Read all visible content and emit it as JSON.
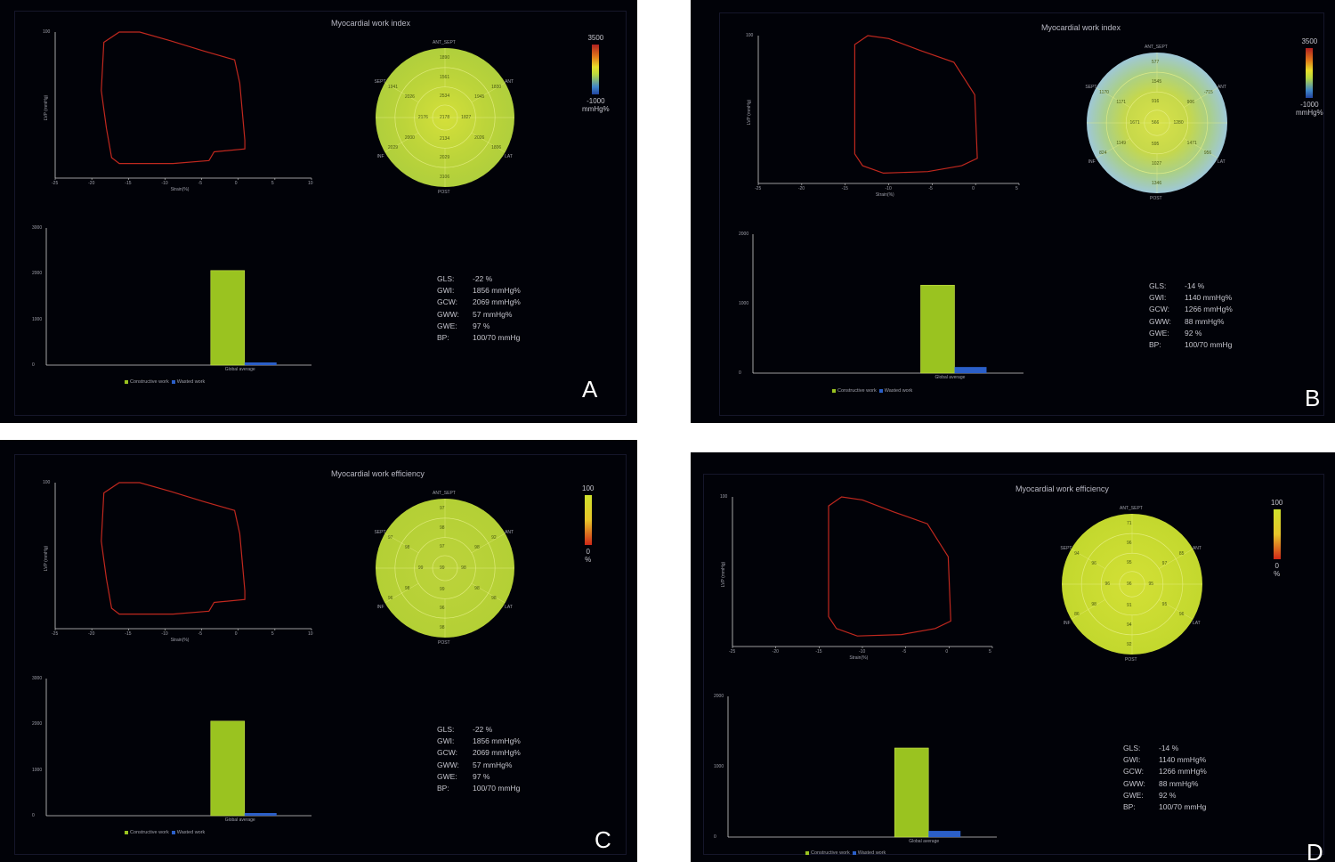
{
  "panels": [
    {
      "letter": "A",
      "title": "Myocardial work index",
      "scale_top": "3500",
      "scale_bottom": "-1000",
      "scale_unit": "mmHg%",
      "bullseye_scheme": "work",
      "wall_labels": {
        "ant_sept": "ANT_SEPT",
        "ant": "ANT",
        "lat": "LAT",
        "post": "POST",
        "inf": "INF",
        "sept": "SEPT"
      },
      "segments": [
        "1890",
        "1830",
        "1806",
        "3106",
        "2029",
        "1941",
        "1561",
        "1945",
        "2026",
        "2029",
        "2000",
        "2026",
        "2534",
        "1827",
        "2134",
        "2176",
        "2178"
      ],
      "loop_ylabel": "LVP (mmHg)",
      "loop_xlabel": "Strain(%)",
      "loop_yticks": [
        "100"
      ],
      "loop_xticks": [
        "-25",
        "-20",
        "-15",
        "-10",
        "-5",
        "0",
        "5",
        "10"
      ],
      "bar_yticks": [
        "3000",
        "2000",
        "1000",
        "0"
      ],
      "bar_xlabel": "Global average",
      "legend": [
        "Constructive work",
        "Wasted work"
      ],
      "bars": {
        "constructive": 2069,
        "wasted": 57,
        "ymax": 3000
      },
      "stats": [
        [
          "GLS:",
          "-22 %"
        ],
        [
          "GWI:",
          "1856 mmHg%"
        ],
        [
          "GCW:",
          "2069 mmHg%"
        ],
        [
          "GWW:",
          "57 mmHg%"
        ],
        [
          "GWE:",
          "97 %"
        ],
        [
          "BP:",
          "100/70 mmHg"
        ]
      ]
    },
    {
      "letter": "B",
      "title": "Myocardial work index",
      "scale_top": "3500",
      "scale_bottom": "-1000",
      "scale_unit": "mmHg%",
      "bullseye_scheme": "work_b",
      "wall_labels": {
        "ant_sept": "ANT_SEPT",
        "ant": "ANT",
        "lat": "LAT",
        "post": "POST",
        "inf": "INF",
        "sept": "SEPT"
      },
      "segments": [
        "577",
        "-715",
        "956",
        "1346",
        "824",
        "1170",
        "1545",
        "906",
        "1471",
        "1027",
        "1149",
        "1171",
        "916",
        "1280",
        "595",
        "1671",
        "566"
      ],
      "loop_ylabel": "LVP (mmHg)",
      "loop_xlabel": "Strain(%)",
      "loop_yticks": [
        "100"
      ],
      "loop_xticks": [
        "-25",
        "-20",
        "-15",
        "-10",
        "-5",
        "0",
        "5"
      ],
      "bar_yticks": [
        "2000",
        "1000",
        "0"
      ],
      "bar_xlabel": "Global average",
      "legend": [
        "Constructive work",
        "Wasted work"
      ],
      "bars": {
        "constructive": 1266,
        "wasted": 88,
        "ymax": 2000
      },
      "stats": [
        [
          "GLS:",
          "-14 %"
        ],
        [
          "GWI:",
          "1140 mmHg%"
        ],
        [
          "GCW:",
          "1266 mmHg%"
        ],
        [
          "GWW:",
          "88 mmHg%"
        ],
        [
          "GWE:",
          "92 %"
        ],
        [
          "BP:",
          "100/70 mmHg"
        ]
      ]
    },
    {
      "letter": "C",
      "title": "Myocardial work efficiency",
      "scale_top": "100",
      "scale_bottom": "0",
      "scale_unit": "%",
      "bullseye_scheme": "eff",
      "wall_labels": {
        "ant_sept": "ANT_SEPT",
        "ant": "ANT",
        "lat": "LAT",
        "post": "POST",
        "inf": "INF",
        "sept": "SEPT"
      },
      "segments": [
        "97",
        "92",
        "98",
        "98",
        "96",
        "97",
        "98",
        "98",
        "98",
        "96",
        "98",
        "98",
        "97",
        "98",
        "99",
        "99",
        "99"
      ],
      "loop_ylabel": "LVP (mmHg)",
      "loop_xlabel": "Strain(%)",
      "loop_yticks": [
        "100"
      ],
      "loop_xticks": [
        "-25",
        "-20",
        "-15",
        "-10",
        "-5",
        "0",
        "5",
        "10"
      ],
      "bar_yticks": [
        "3000",
        "2000",
        "1000",
        "0"
      ],
      "bar_xlabel": "Global average",
      "legend": [
        "Constructive work",
        "Wasted work"
      ],
      "bars": {
        "constructive": 2069,
        "wasted": 57,
        "ymax": 3000
      },
      "stats": [
        [
          "GLS:",
          "-22 %"
        ],
        [
          "GWI:",
          "1856 mmHg%"
        ],
        [
          "GCW:",
          "2069 mmHg%"
        ],
        [
          "GWW:",
          "57 mmHg%"
        ],
        [
          "GWE:",
          "97 %"
        ],
        [
          "BP:",
          "100/70 mmHg"
        ]
      ]
    },
    {
      "letter": "D",
      "title": "Myocardial work efficiency",
      "scale_top": "100",
      "scale_bottom": "0",
      "scale_unit": "%",
      "bullseye_scheme": "eff_d",
      "wall_labels": {
        "ant_sept": "ANT_SEPT",
        "ant": "ANT",
        "lat": "LAT",
        "post": "POST",
        "inf": "INF",
        "sept": "SEPT"
      },
      "segments": [
        "71",
        "85",
        "96",
        "92",
        "86",
        "94",
        "96",
        "97",
        "95",
        "94",
        "98",
        "96",
        "95",
        "95",
        "91",
        "96",
        "96"
      ],
      "loop_ylabel": "LVP (mmHg)",
      "loop_xlabel": "Strain(%)",
      "loop_yticks": [
        "100"
      ],
      "loop_xticks": [
        "-25",
        "-20",
        "-15",
        "-10",
        "-5",
        "0",
        "5"
      ],
      "bar_yticks": [
        "2000",
        "1000",
        "0"
      ],
      "bar_xlabel": "Global average",
      "legend": [
        "Constructive work",
        "Wasted work"
      ],
      "bars": {
        "constructive": 1266,
        "wasted": 88,
        "ymax": 2000
      },
      "stats": [
        [
          "GLS:",
          "-14 %"
        ],
        [
          "GWI:",
          "1140 mmHg%"
        ],
        [
          "GCW:",
          "1266 mmHg%"
        ],
        [
          "GWW:",
          "88 mmHg%"
        ],
        [
          "GWE:",
          "92 %"
        ],
        [
          "BP:",
          "100/70 mmHg"
        ]
      ]
    }
  ],
  "colors": {
    "constructive": "#9ac320",
    "wasted": "#2b5fc8",
    "loop": "#c0281e",
    "bullseye": "#b7d23a"
  }
}
